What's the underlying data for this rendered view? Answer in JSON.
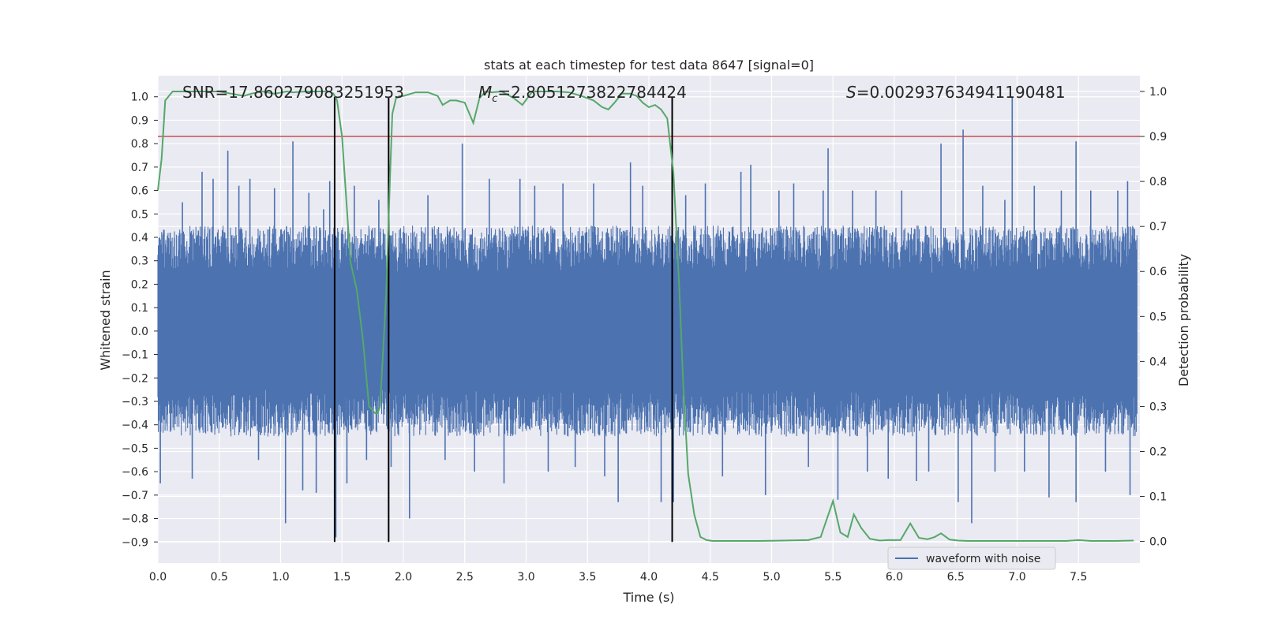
{
  "chart_data": {
    "type": "line",
    "title": "stats at each timestep for test data 8647 [signal=0]",
    "xlabel": "Time (s)",
    "ylabel_left": "Whitened strain",
    "ylabel_right": "Detection probability",
    "xlim": [
      0.0,
      8.0
    ],
    "ylim_left": [
      -0.99,
      1.09
    ],
    "ylim_right": [
      -0.048,
      1.035
    ],
    "xticks": [
      "0.0",
      "0.5",
      "1.0",
      "1.5",
      "2.0",
      "2.5",
      "3.0",
      "3.5",
      "4.0",
      "4.5",
      "5.0",
      "5.5",
      "6.0",
      "6.5",
      "7.0",
      "7.5"
    ],
    "yticks_left": [
      "1.0",
      "0.9",
      "0.8",
      "0.7",
      "0.6",
      "0.5",
      "0.4",
      "0.3",
      "0.2",
      "0.1",
      "0.0",
      "−0.1",
      "−0.2",
      "−0.3",
      "−0.4",
      "−0.5",
      "−0.6",
      "−0.7",
      "−0.8",
      "−0.9"
    ],
    "yticks_right": [
      "1.0",
      "0.9",
      "0.8",
      "0.7",
      "0.6",
      "0.5",
      "0.4",
      "0.3",
      "0.2",
      "0.1",
      "0.0"
    ],
    "grid": true,
    "legend_position": "lower-center-right",
    "annotations": {
      "snr": "SNR=17.860279083251953",
      "mc_symbol": "M",
      "mc_sub": "c",
      "mc_value": "=2.8051273822784424",
      "s_symbol": "S",
      "s_value": "=0.002937634941190481"
    },
    "threshold_right": 0.9,
    "vlines_x": [
      1.44,
      1.88,
      4.19
    ],
    "series": [
      {
        "name": "waveform with noise",
        "axis": "left",
        "style": "dense noise",
        "color": "#4c72b0",
        "typical_band": [
          -0.45,
          0.45
        ],
        "noise_seed": 8647,
        "spikes": [
          [
            0.02,
            -0.65
          ],
          [
            0.1,
            0.42
          ],
          [
            0.2,
            0.55
          ],
          [
            0.28,
            -0.63
          ],
          [
            0.36,
            0.68
          ],
          [
            0.45,
            0.65
          ],
          [
            0.57,
            0.77
          ],
          [
            0.66,
            0.62
          ],
          [
            0.75,
            0.65
          ],
          [
            0.82,
            -0.55
          ],
          [
            0.95,
            0.61
          ],
          [
            1.04,
            -0.82
          ],
          [
            1.1,
            0.81
          ],
          [
            1.18,
            -0.68
          ],
          [
            1.23,
            0.59
          ],
          [
            1.29,
            -0.69
          ],
          [
            1.35,
            0.52
          ],
          [
            1.4,
            0.64
          ],
          [
            1.45,
            -0.88
          ],
          [
            1.54,
            -0.65
          ],
          [
            1.6,
            0.62
          ],
          [
            1.7,
            -0.55
          ],
          [
            1.8,
            0.56
          ],
          [
            1.9,
            -0.58
          ],
          [
            2.05,
            -0.8
          ],
          [
            2.2,
            0.58
          ],
          [
            2.34,
            -0.55
          ],
          [
            2.48,
            0.8
          ],
          [
            2.58,
            -0.6
          ],
          [
            2.7,
            0.65
          ],
          [
            2.82,
            -0.65
          ],
          [
            2.95,
            0.65
          ],
          [
            3.07,
            0.62
          ],
          [
            3.18,
            -0.6
          ],
          [
            3.3,
            0.63
          ],
          [
            3.4,
            -0.58
          ],
          [
            3.55,
            0.63
          ],
          [
            3.64,
            -0.62
          ],
          [
            3.75,
            -0.73
          ],
          [
            3.85,
            0.72
          ],
          [
            3.95,
            0.62
          ],
          [
            4.1,
            -0.73
          ],
          [
            4.2,
            -0.73
          ],
          [
            4.3,
            0.58
          ],
          [
            4.46,
            0.63
          ],
          [
            4.6,
            -0.62
          ],
          [
            4.75,
            0.68
          ],
          [
            4.83,
            0.71
          ],
          [
            4.95,
            -0.7
          ],
          [
            5.06,
            0.6
          ],
          [
            5.18,
            0.63
          ],
          [
            5.3,
            -0.58
          ],
          [
            5.42,
            0.6
          ],
          [
            5.46,
            0.78
          ],
          [
            5.54,
            -0.72
          ],
          [
            5.66,
            0.6
          ],
          [
            5.78,
            -0.6
          ],
          [
            5.85,
            0.6
          ],
          [
            5.95,
            -0.63
          ],
          [
            6.06,
            0.6
          ],
          [
            6.18,
            -0.64
          ],
          [
            6.28,
            -0.6
          ],
          [
            6.38,
            0.8
          ],
          [
            6.52,
            -0.73
          ],
          [
            6.56,
            0.86
          ],
          [
            6.63,
            -0.82
          ],
          [
            6.72,
            0.62
          ],
          [
            6.82,
            -0.6
          ],
          [
            6.9,
            0.56
          ],
          [
            6.96,
            1.0
          ],
          [
            7.06,
            -0.6
          ],
          [
            7.14,
            0.62
          ],
          [
            7.26,
            -0.71
          ],
          [
            7.36,
            0.6
          ],
          [
            7.48,
            0.81
          ],
          [
            7.48,
            -0.73
          ],
          [
            7.6,
            0.6
          ],
          [
            7.72,
            -0.6
          ],
          [
            7.82,
            0.6
          ],
          [
            7.9,
            0.64
          ],
          [
            7.92,
            -0.7
          ]
        ]
      },
      {
        "name": "Detection probability",
        "axis": "right",
        "color": "#55a868",
        "x": [
          0.0,
          0.03,
          0.06,
          0.12,
          0.2,
          0.3,
          0.4,
          0.5,
          0.6,
          0.7,
          0.76,
          0.85,
          0.95,
          1.05,
          1.1,
          1.2,
          1.3,
          1.4,
          1.43,
          1.46,
          1.5,
          1.53,
          1.57,
          1.62,
          1.67,
          1.72,
          1.77,
          1.79,
          1.81,
          1.86,
          1.89,
          1.91,
          1.94,
          1.97,
          2.0,
          2.1,
          2.2,
          2.28,
          2.32,
          2.38,
          2.43,
          2.5,
          2.57,
          2.62,
          2.67,
          2.72,
          2.8,
          2.9,
          2.97,
          3.05,
          3.15,
          3.25,
          3.35,
          3.45,
          3.55,
          3.62,
          3.67,
          3.72,
          3.78,
          3.85,
          3.9,
          3.95,
          4.0,
          4.05,
          4.1,
          4.15,
          4.2,
          4.25,
          4.28,
          4.32,
          4.37,
          4.42,
          4.47,
          4.52,
          4.6,
          4.7,
          4.9,
          5.1,
          5.3,
          5.4,
          5.45,
          5.5,
          5.56,
          5.62,
          5.67,
          5.73,
          5.8,
          5.88,
          5.95,
          6.05,
          6.13,
          6.2,
          6.27,
          6.33,
          6.38,
          6.45,
          6.52,
          6.6,
          6.8,
          7.0,
          7.2,
          7.4,
          7.5,
          7.6,
          7.8,
          7.95
        ],
        "y": [
          0.78,
          0.85,
          0.98,
          1.0,
          1.0,
          1.0,
          1.0,
          1.0,
          0.995,
          0.99,
          0.995,
          1.0,
          0.995,
          1.0,
          0.998,
          1.0,
          1.0,
          1.0,
          0.995,
          0.98,
          0.9,
          0.78,
          0.62,
          0.56,
          0.45,
          0.3,
          0.285,
          0.285,
          0.3,
          0.55,
          0.8,
          0.95,
          0.985,
          0.99,
          0.99,
          0.998,
          0.998,
          0.99,
          0.97,
          0.98,
          0.98,
          0.975,
          0.93,
          0.985,
          1.0,
          0.998,
          1.0,
          0.985,
          0.97,
          1.0,
          1.0,
          1.0,
          0.998,
          0.99,
          0.98,
          0.965,
          0.96,
          0.975,
          0.995,
          0.995,
          0.99,
          0.975,
          0.965,
          0.97,
          0.96,
          0.94,
          0.82,
          0.55,
          0.35,
          0.15,
          0.06,
          0.01,
          0.003,
          0.001,
          0.001,
          0.001,
          0.001,
          0.002,
          0.003,
          0.01,
          0.05,
          0.09,
          0.02,
          0.01,
          0.06,
          0.03,
          0.006,
          0.002,
          0.003,
          0.003,
          0.04,
          0.008,
          0.005,
          0.01,
          0.018,
          0.004,
          0.002,
          0.001,
          0.001,
          0.001,
          0.001,
          0.001,
          0.003,
          0.001,
          0.001,
          0.002
        ]
      }
    ]
  }
}
